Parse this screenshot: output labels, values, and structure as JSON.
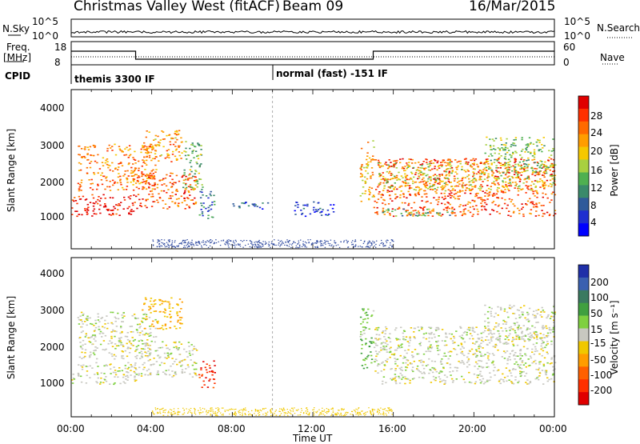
{
  "header": {
    "station": "Christmas Valley West (fitACF)",
    "beam": "Beam 09",
    "date": "16/Mar/2015"
  },
  "strips": {
    "nsky": {
      "label": "N.Sky",
      "right_label": "N.Search",
      "ticks_left": [
        "10^5",
        "10^0"
      ],
      "ticks_right": [
        "10^5",
        "10^0"
      ]
    },
    "freq": {
      "label_top": "Freq.",
      "label_bottom": "[MHz]",
      "right_label": "Nave",
      "ticks_left": [
        "18",
        "8"
      ],
      "ticks_right": [
        "60",
        "0"
      ]
    },
    "cpid": {
      "label": "CPID",
      "modes": [
        "themis 3300 IF",
        "normal (fast) -151 IF"
      ]
    }
  },
  "axes": {
    "ylabel": "Slant Range [km]",
    "y_ticks": [
      "4000",
      "3000",
      "2000",
      "1000"
    ],
    "xlabel": "Time UT",
    "x_ticks": [
      "00:00",
      "04:00",
      "08:00",
      "12:00",
      "16:00",
      "20:00",
      "00:00"
    ]
  },
  "colorbars": {
    "power": {
      "label": "Power [dB]",
      "ticks": [
        "28",
        "24",
        "20",
        "16",
        "12",
        "8",
        "4"
      ],
      "colors": [
        "#e00000",
        "#ff3000",
        "#ff6a00",
        "#ff9d00",
        "#f5c800",
        "#a8d040",
        "#4fb050",
        "#3a8a6a",
        "#2f5a9a",
        "#1f2fd0",
        "#0000ff"
      ]
    },
    "velocity": {
      "label": "Velocity [m s⁻¹]",
      "ticks": [
        "200",
        "100",
        "50",
        "15",
        "-15",
        "-50",
        "-100",
        "-200"
      ],
      "colors": [
        "#1f2fa8",
        "#3a60b0",
        "#3a7a60",
        "#40a040",
        "#7fd040",
        "#c8c8c0",
        "#f0c800",
        "#ff9d00",
        "#ff6000",
        "#ff3000",
        "#e00000"
      ]
    }
  },
  "chart_data": [
    {
      "type": "heatmap",
      "title": "Power",
      "xlabel": "Time UT",
      "ylabel": "Slant Range [km]",
      "x_range": [
        "00:00",
        "24:00"
      ],
      "ylim": [
        180,
        4600
      ],
      "colorbar": {
        "label": "Power [dB]",
        "range": [
          0,
          32
        ]
      },
      "regions": [
        {
          "t": [
            0.0,
            3.2
          ],
          "r": [
            1100,
            1700
          ],
          "value": 30
        },
        {
          "t": [
            0.3,
            4.2
          ],
          "r": [
            1800,
            3100
          ],
          "value": 24
        },
        {
          "t": [
            3.2,
            6.2
          ],
          "r": [
            1300,
            2300
          ],
          "value": 26
        },
        {
          "t": [
            3.5,
            5.5
          ],
          "r": [
            2600,
            3500
          ],
          "value": 22
        },
        {
          "t": [
            5.5,
            6.5
          ],
          "r": [
            1800,
            3200
          ],
          "value": 14
        },
        {
          "t": [
            6.3,
            7.1
          ],
          "r": [
            1000,
            1800
          ],
          "value": 8
        },
        {
          "t": [
            8.0,
            10.0
          ],
          "r": [
            1300,
            1500
          ],
          "value": 6
        },
        {
          "t": [
            11.0,
            13.0
          ],
          "r": [
            1100,
            1500
          ],
          "value": 5
        },
        {
          "t": [
            14.3,
            15.0
          ],
          "r": [
            1500,
            3200
          ],
          "value": 20
        },
        {
          "t": [
            15.0,
            24.0
          ],
          "r": [
            1100,
            2700
          ],
          "value": 26
        },
        {
          "t": [
            15.2,
            24.0
          ],
          "r": [
            1800,
            2600
          ],
          "value": 18
        },
        {
          "t": [
            20.5,
            24.0
          ],
          "r": [
            2300,
            3300
          ],
          "value": 15
        },
        {
          "t": [
            15.4,
            19.0
          ],
          "r": [
            1100,
            1300
          ],
          "value": 12
        }
      ]
    },
    {
      "type": "heatmap",
      "title": "Velocity",
      "xlabel": "Time UT",
      "ylabel": "Slant Range [km]",
      "x_range": [
        "00:00",
        "24:00"
      ],
      "ylim": [
        180,
        4600
      ],
      "colorbar": {
        "label": "Velocity [m s-1]",
        "range": [
          -200,
          200
        ]
      },
      "regions": [
        {
          "t": [
            0.0,
            3.2
          ],
          "r": [
            1100,
            1700
          ],
          "value": 0
        },
        {
          "t": [
            0.3,
            4.2
          ],
          "r": [
            1800,
            3100
          ],
          "value": 0
        },
        {
          "t": [
            3.2,
            6.2
          ],
          "r": [
            1300,
            2300
          ],
          "value": 0
        },
        {
          "t": [
            3.5,
            5.5
          ],
          "r": [
            2600,
            3500
          ],
          "value": -60
        },
        {
          "t": [
            6.3,
            7.1
          ],
          "r": [
            1000,
            1800
          ],
          "value": -150
        },
        {
          "t": [
            14.3,
            15.0
          ],
          "r": [
            1500,
            3200
          ],
          "value": 40
        },
        {
          "t": [
            15.0,
            24.0
          ],
          "r": [
            1100,
            2700
          ],
          "value": 0
        },
        {
          "t": [
            20.5,
            24.0
          ],
          "r": [
            2300,
            3300
          ],
          "value": 0
        }
      ]
    }
  ]
}
